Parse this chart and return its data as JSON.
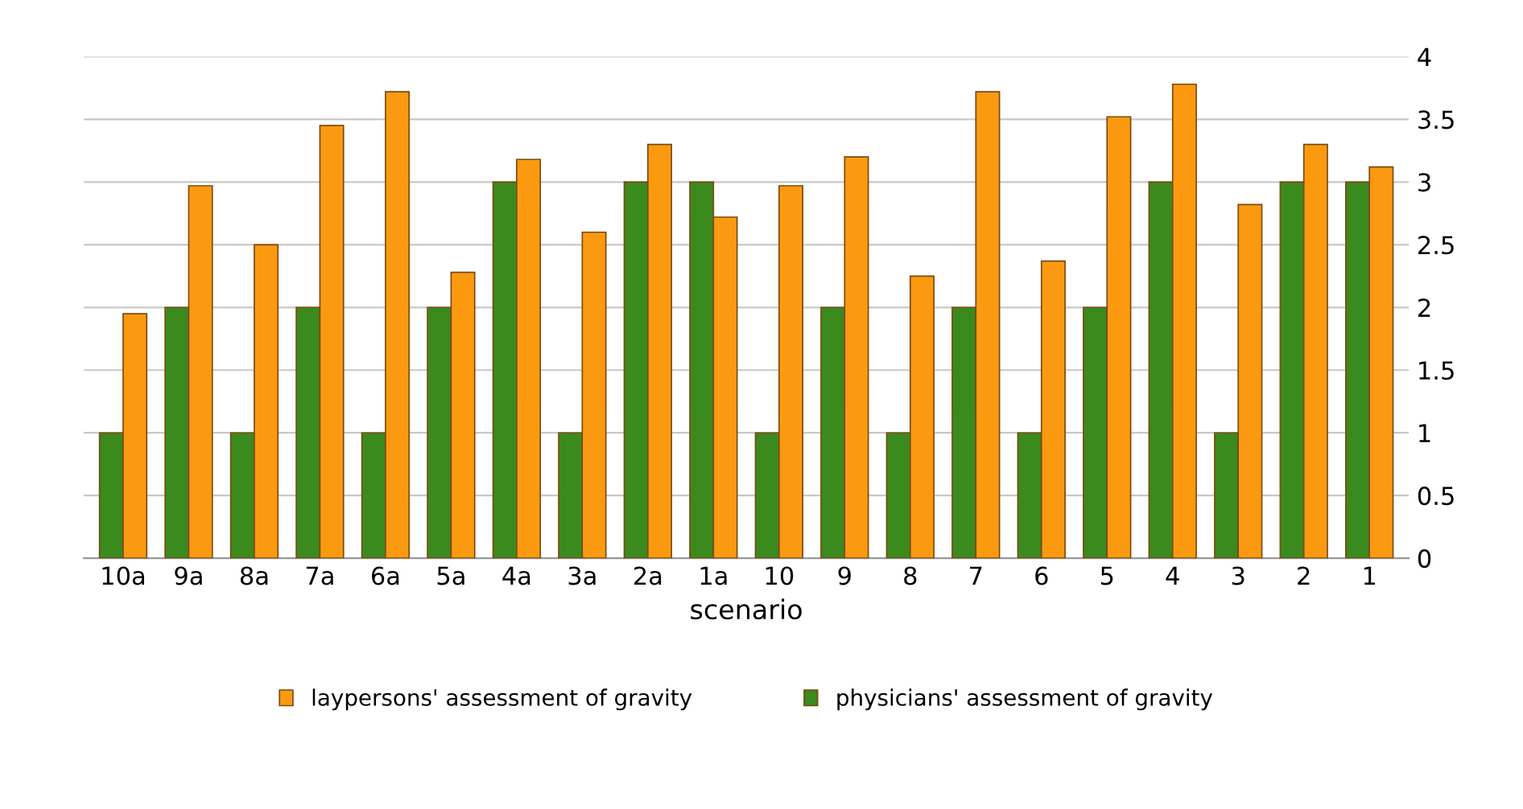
{
  "chart_data": {
    "type": "bar",
    "xlabel": "scenario",
    "categories": [
      "10a",
      "9a",
      "8a",
      "7a",
      "6a",
      "5a",
      "4a",
      "3a",
      "2a",
      "1a",
      "10",
      "9",
      "8",
      "7",
      "6",
      "5",
      "4",
      "3",
      "2",
      "1"
    ],
    "series": [
      {
        "name": "physicians' assessment of gravity",
        "color": "#3b8a1e",
        "values": [
          1,
          2,
          1,
          2,
          1,
          2,
          3,
          1,
          3,
          3,
          1,
          2,
          1,
          2,
          1,
          2,
          3,
          1,
          3,
          3
        ]
      },
      {
        "name": "laypersons' assessment of gravity",
        "color": "#fb9a10",
        "values": [
          1.95,
          2.97,
          2.5,
          3.45,
          3.72,
          2.28,
          3.18,
          2.6,
          3.3,
          2.72,
          2.97,
          3.2,
          2.25,
          3.72,
          2.37,
          3.52,
          3.78,
          2.82,
          3.3,
          3.12
        ]
      }
    ],
    "ylim": [
      0,
      4
    ],
    "yticks": [
      0,
      0.5,
      1,
      1.5,
      2,
      2.5,
      3,
      3.5,
      4
    ],
    "grid": "y",
    "legend": "bottom"
  }
}
